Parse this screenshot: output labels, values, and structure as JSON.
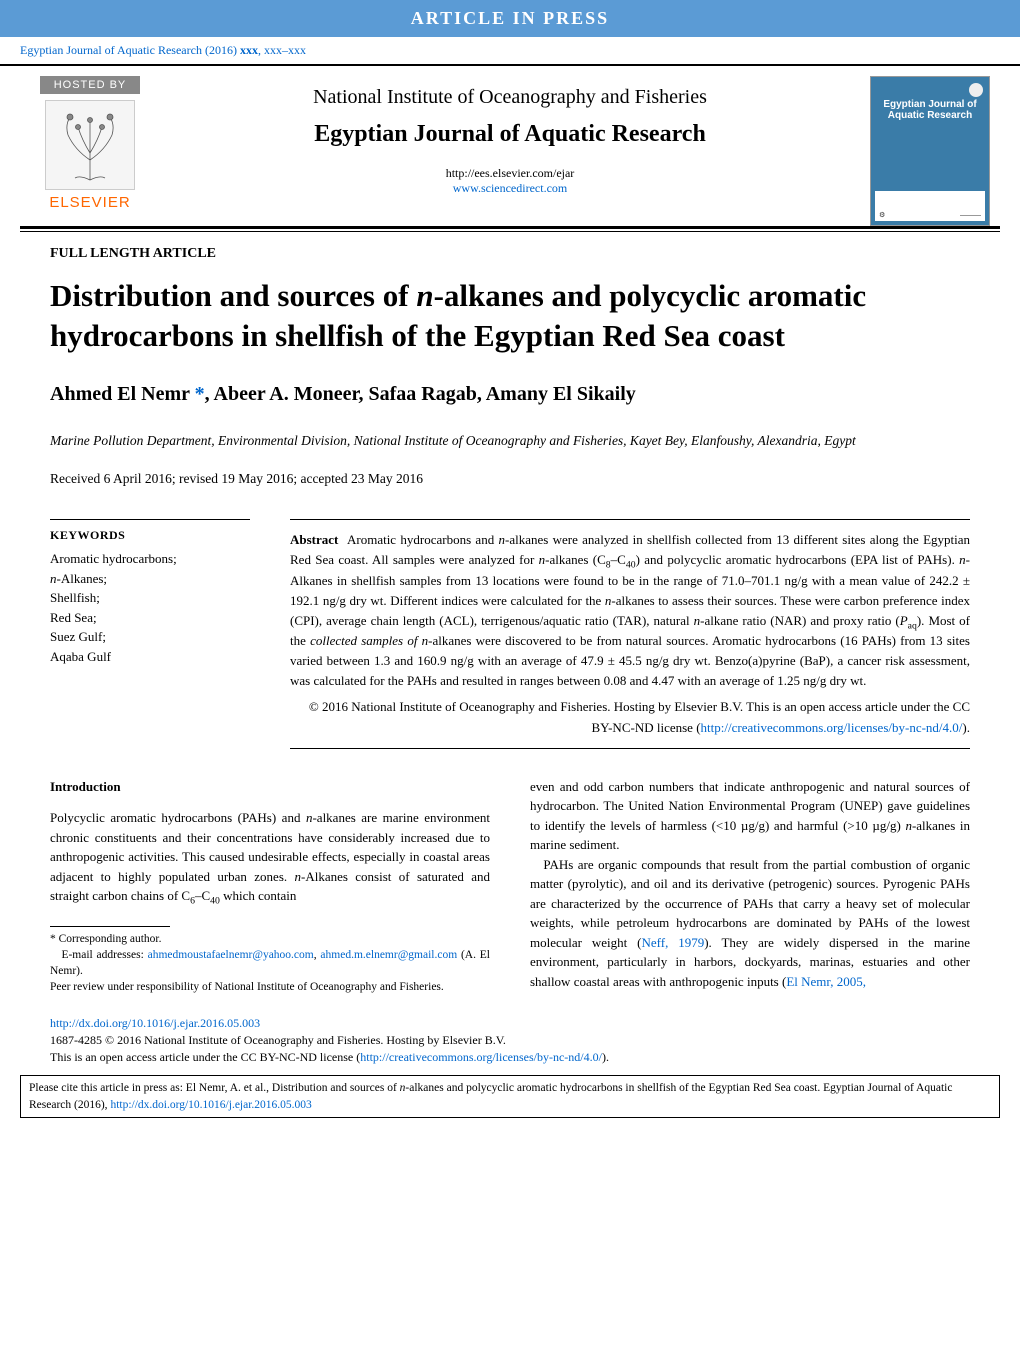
{
  "colors": {
    "link": "#0066cc",
    "banner": "#5b9bd5",
    "elsevier": "#ff6600",
    "badge": "#888888",
    "cover": "#3a7ca8",
    "text": "#000000"
  },
  "typography": {
    "base_font": "Georgia, Times New Roman, serif",
    "title_size_pt": 23,
    "author_size_pt": 15,
    "body_size_pt": 10
  },
  "banner": {
    "label": "ARTICLE IN PRESS"
  },
  "citation": {
    "text_prefix": "Egyptian Journal of Aquatic Research (2016) ",
    "vol": "xxx",
    "pages": ", xxx–xxx"
  },
  "masthead": {
    "hosted_by": "HOSTED BY",
    "elsevier": "ELSEVIER",
    "institute": "National Institute of Oceanography and Fisheries",
    "journal": "Egyptian Journal of Aquatic Research",
    "url1": "http://ees.elsevier.com/ejar",
    "url2": "www.sciencedirect.com",
    "cover_title": "Egyptian Journal of Aquatic Research"
  },
  "article": {
    "type": "FULL LENGTH ARTICLE",
    "title_html": "Distribution and sources of <em class='ital'>n</em>-alkanes and polycyclic aromatic hydrocarbons in shellfish of the Egyptian Red Sea coast",
    "authors_html": "Ahmed El Nemr <a class='author-link' href='#'>*</a>, Abeer A. Moneer, Safaa Ragab, Amany El Sikaily",
    "affiliation": "Marine Pollution Department, Environmental Division, National Institute of Oceanography and Fisheries, Kayet Bey, Elanfoushy, Alexandria, Egypt",
    "dates": "Received 6 April 2016; revised 19 May 2016; accepted 23 May 2016"
  },
  "keywords": {
    "header": "KEYWORDS",
    "items": [
      "Aromatic hydrocarbons;",
      "n-Alkanes;",
      "Shellfish;",
      "Red Sea;",
      "Suez Gulf;",
      "Aqaba Gulf"
    ]
  },
  "abstract": {
    "label": "Abstract",
    "body_html": "Aromatic hydrocarbons and <em class='ital'>n</em>-alkanes were analyzed in shellfish collected from 13 different sites along the Egyptian Red Sea coast. All samples were analyzed for <em class='ital'>n</em>-alkanes (C<sub>8</sub>–C<sub>40</sub>) and polycyclic aromatic hydrocarbons (EPA list of PAHs). <em class='ital'>n</em>-Alkanes in shellfish samples from 13 locations were found to be in the range of 71.0–701.1 ng/g with a mean value of 242.2 ± 192.1 ng/g dry wt. Different indices were calculated for the <em class='ital'>n</em>-alkanes to assess their sources. These were carbon preference index (CPI), average chain length (ACL), terrigenous/aquatic ratio (TAR), natural <em class='ital'>n</em>-alkane ratio (NAR) and proxy ratio (<em class='ital'>P</em><sub>aq</sub>). Most of the <em class='ital'>collected samples of n</em>-alkanes were discovered to be from natural sources. Aromatic hydrocarbons (16 PAHs) from 13 sites varied between 1.3 and 160.9 ng/g with an average of 47.9 ± 45.5 ng/g dry wt. Benzo(a)pyrine (BaP), a cancer risk assessment, was calculated for the PAHs and resulted in ranges between 0.08 and 4.47 with an average of 1.25 ng/g dry wt.",
    "license_html": "© 2016 National Institute of Oceanography and Fisheries. Hosting by Elsevier B.V. This is an open access article under the CC BY-NC-ND license (<a href='#'>http://creativecommons.org/licenses/by-nc-nd/4.0/</a>)."
  },
  "body": {
    "heading": "Introduction",
    "left_html": "Polycyclic aromatic hydrocarbons (PAHs) and <em class='ital'>n</em>-alkanes are marine environment chronic constituents and their concentrations have considerably increased due to anthropogenic activities. This caused undesirable effects, especially in coastal areas adjacent to highly populated urban zones. <em class='ital'>n</em>-Alkanes consist of saturated and straight carbon chains of C<sub>6</sub>–C<sub>40</sub> which contain",
    "right_html": "even and odd carbon numbers that indicate anthropogenic and natural sources of hydrocarbon. The United Nation Environmental Program (UNEP) gave guidelines to identify the levels of harmless (&lt;10 µg/g) and harmful (&gt;10 µg/g) <em class='ital'>n</em>-alkanes in marine sediment.<br>&nbsp;&nbsp;&nbsp;PAHs are organic compounds that result from the partial combustion of organic matter (pyrolytic), and oil and its derivative (petrogenic) sources. Pyrogenic PAHs are characterized by the occurrence of PAHs that carry a heavy set of molecular weights, while petroleum hydrocarbons are dominated by PAHs of the lowest molecular weight (<a href='#'>Neff, 1979</a>). They are widely dispersed in the marine environment, particularly in harbors, dockyards, marinas, estuaries and other shallow coastal areas with anthropogenic inputs (<a href='#'>El Nemr, 2005,</a>"
  },
  "footnotes": {
    "corr": "* Corresponding author.",
    "emails_label": "E-mail addresses: ",
    "email1": "ahmedmoustafaelnemr@yahoo.com",
    "email2": "ahmed.m.elnemr@gmail.com",
    "email_author": " (A. El Nemr).",
    "peer": "Peer review under responsibility of National Institute of Oceanography and Fisheries."
  },
  "doi": {
    "url": "http://dx.doi.org/10.1016/j.ejar.2016.05.003",
    "issn_line": "1687-4285 © 2016 National Institute of Oceanography and Fisheries. Hosting by Elsevier B.V.",
    "license_line_html": "This is an open access article under the CC BY-NC-ND license (<a href='#'>http://creativecommons.org/licenses/by-nc-nd/4.0/</a>)."
  },
  "citebox": {
    "text_html": "Please cite this article in press as: El Nemr, A. et al., Distribution and sources of <em class='ital'>n</em>-alkanes and polycyclic aromatic hydrocarbons in shellfish of the Egyptian Red Sea coast. Egyptian Journal of Aquatic Research (2016), <a href='#'>http://dx.doi.org/10.1016/j.ejar.2016.05.003</a>"
  }
}
